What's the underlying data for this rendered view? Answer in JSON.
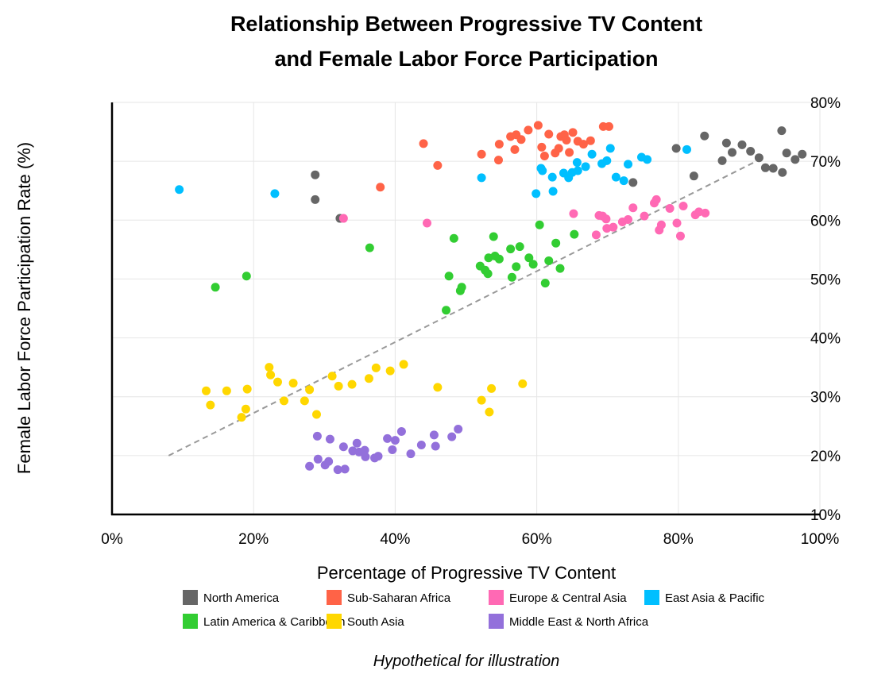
{
  "chart_data": {
    "type": "scatter",
    "title": [
      "Relationship Between Progressive TV Content",
      "and Female Labor Force Participation"
    ],
    "xlabel": "Percentage of Progressive TV Content",
    "ylabel": "Female Labor Force Participation Rate (%)",
    "xlim": [
      0,
      100
    ],
    "ylim": [
      10,
      80
    ],
    "x_ticks": [
      0,
      20,
      40,
      60,
      80,
      100
    ],
    "x_tick_labels": [
      "0%",
      "20%",
      "40%",
      "60%",
      "80%",
      "100%"
    ],
    "y_ticks": [
      10,
      20,
      30,
      40,
      50,
      60,
      70,
      80
    ],
    "y_tick_labels": [
      "10%",
      "20%",
      "30%",
      "40%",
      "50%",
      "60%",
      "70%",
      "80%"
    ],
    "y_axis_side": "right",
    "grid": true,
    "legend_position": "bottom",
    "note": "Hypothetical for illustration",
    "trend_line": {
      "x": [
        8,
        91
      ],
      "y": [
        20,
        70
      ],
      "color": "#999999",
      "style": "dashed"
    },
    "series": [
      {
        "name": "North America",
        "color": "#666666",
        "points": [
          [
            28.7,
            67.7
          ],
          [
            28.7,
            63.5
          ],
          [
            32.2,
            60.3
          ],
          [
            73.6,
            66.4
          ],
          [
            79.7,
            72.2
          ],
          [
            82.2,
            67.5
          ],
          [
            83.7,
            74.3
          ],
          [
            86.2,
            70.1
          ],
          [
            86.8,
            73.1
          ],
          [
            87.6,
            71.5
          ],
          [
            89.0,
            72.8
          ],
          [
            90.2,
            71.7
          ],
          [
            91.4,
            70.6
          ],
          [
            92.3,
            68.9
          ],
          [
            93.4,
            68.8
          ],
          [
            94.6,
            75.2
          ],
          [
            94.7,
            68.1
          ],
          [
            95.3,
            71.4
          ],
          [
            96.5,
            70.3
          ],
          [
            97.5,
            71.2
          ]
        ]
      },
      {
        "name": "Sub-Saharan Africa",
        "color": "#FF6347",
        "points": [
          [
            37.9,
            65.6
          ],
          [
            44.0,
            73.0
          ],
          [
            46.0,
            69.3
          ],
          [
            52.2,
            71.2
          ],
          [
            54.6,
            70.2
          ],
          [
            54.7,
            72.9
          ],
          [
            56.3,
            74.2
          ],
          [
            57.1,
            74.5
          ],
          [
            56.9,
            72.0
          ],
          [
            57.8,
            73.7
          ],
          [
            58.8,
            75.3
          ],
          [
            60.2,
            76.1
          ],
          [
            60.7,
            72.4
          ],
          [
            61.1,
            70.9
          ],
          [
            61.7,
            74.6
          ],
          [
            62.6,
            71.4
          ],
          [
            63.1,
            72.2
          ],
          [
            63.4,
            74.2
          ],
          [
            63.9,
            74.5
          ],
          [
            64.2,
            73.6
          ],
          [
            64.6,
            71.5
          ],
          [
            65.1,
            74.9
          ],
          [
            65.8,
            73.4
          ],
          [
            66.6,
            72.9
          ],
          [
            67.6,
            73.5
          ],
          [
            69.4,
            75.9
          ],
          [
            70.2,
            75.9
          ]
        ]
      },
      {
        "name": "Europe & Central Asia",
        "color": "#FF69B4",
        "points": [
          [
            32.7,
            60.3
          ],
          [
            44.5,
            59.5
          ],
          [
            65.2,
            61.1
          ],
          [
            68.4,
            57.5
          ],
          [
            68.8,
            60.8
          ],
          [
            69.3,
            60.7
          ],
          [
            69.8,
            60.2
          ],
          [
            69.9,
            58.6
          ],
          [
            70.8,
            58.8
          ],
          [
            72.1,
            59.7
          ],
          [
            72.9,
            60.1
          ],
          [
            73.6,
            62.1
          ],
          [
            75.2,
            60.7
          ],
          [
            76.6,
            62.9
          ],
          [
            76.9,
            63.5
          ],
          [
            77.3,
            58.3
          ],
          [
            77.6,
            59.2
          ],
          [
            78.8,
            62.0
          ],
          [
            79.8,
            59.5
          ],
          [
            80.3,
            57.3
          ],
          [
            80.7,
            62.4
          ],
          [
            82.4,
            60.9
          ],
          [
            82.9,
            61.4
          ],
          [
            83.8,
            61.2
          ]
        ]
      },
      {
        "name": "East Asia & Pacific",
        "color": "#00BFFF",
        "points": [
          [
            9.5,
            65.2
          ],
          [
            23.0,
            64.5
          ],
          [
            52.2,
            67.2
          ],
          [
            59.9,
            64.5
          ],
          [
            60.6,
            68.8
          ],
          [
            60.8,
            68.4
          ],
          [
            62.2,
            67.3
          ],
          [
            62.3,
            64.9
          ],
          [
            63.8,
            68.0
          ],
          [
            64.5,
            67.2
          ],
          [
            65.0,
            68.1
          ],
          [
            65.7,
            69.8
          ],
          [
            65.8,
            68.4
          ],
          [
            66.9,
            69.1
          ],
          [
            67.8,
            71.2
          ],
          [
            69.2,
            69.6
          ],
          [
            69.9,
            70.1
          ],
          [
            70.4,
            72.2
          ],
          [
            71.2,
            67.3
          ],
          [
            72.3,
            66.7
          ],
          [
            72.9,
            69.5
          ],
          [
            74.8,
            70.7
          ],
          [
            75.6,
            70.3
          ],
          [
            81.2,
            72.0
          ]
        ]
      },
      {
        "name": "Latin America & Caribbean",
        "color": "#32CD32",
        "points": [
          [
            14.6,
            48.6
          ],
          [
            19.0,
            50.5
          ],
          [
            36.4,
            55.3
          ],
          [
            47.2,
            44.7
          ],
          [
            47.6,
            50.5
          ],
          [
            48.3,
            56.9
          ],
          [
            49.2,
            48.0
          ],
          [
            49.4,
            48.6
          ],
          [
            52.0,
            52.2
          ],
          [
            52.7,
            51.5
          ],
          [
            53.1,
            50.9
          ],
          [
            53.2,
            53.6
          ],
          [
            53.9,
            57.2
          ],
          [
            54.1,
            53.9
          ],
          [
            54.7,
            53.4
          ],
          [
            56.3,
            55.1
          ],
          [
            56.5,
            50.3
          ],
          [
            57.1,
            52.1
          ],
          [
            57.6,
            55.5
          ],
          [
            58.9,
            53.6
          ],
          [
            59.5,
            52.5
          ],
          [
            60.4,
            59.2
          ],
          [
            61.2,
            49.3
          ],
          [
            61.7,
            53.1
          ],
          [
            62.7,
            56.1
          ],
          [
            63.3,
            51.8
          ],
          [
            65.3,
            57.6
          ]
        ]
      },
      {
        "name": "South Asia",
        "color": "#FFD700",
        "points": [
          [
            13.3,
            31.0
          ],
          [
            13.9,
            28.6
          ],
          [
            16.2,
            31.0
          ],
          [
            18.3,
            26.5
          ],
          [
            18.9,
            27.9
          ],
          [
            19.1,
            31.3
          ],
          [
            22.2,
            35.0
          ],
          [
            22.4,
            33.7
          ],
          [
            23.4,
            32.5
          ],
          [
            24.3,
            29.3
          ],
          [
            25.6,
            32.3
          ],
          [
            27.2,
            29.3
          ],
          [
            27.9,
            31.2
          ],
          [
            28.9,
            27.0
          ],
          [
            31.1,
            33.5
          ],
          [
            32.0,
            31.8
          ],
          [
            33.9,
            32.1
          ],
          [
            36.3,
            33.1
          ],
          [
            37.3,
            34.9
          ],
          [
            39.3,
            34.4
          ],
          [
            41.2,
            35.5
          ],
          [
            46.0,
            31.6
          ],
          [
            52.2,
            29.4
          ],
          [
            53.3,
            27.4
          ],
          [
            53.6,
            31.4
          ],
          [
            58.0,
            32.2
          ]
        ]
      },
      {
        "name": "Middle East & North Africa",
        "color": "#9370DB",
        "points": [
          [
            27.9,
            18.2
          ],
          [
            29.0,
            23.3
          ],
          [
            29.1,
            19.4
          ],
          [
            30.1,
            18.4
          ],
          [
            30.6,
            19.0
          ],
          [
            30.8,
            22.8
          ],
          [
            31.9,
            17.6
          ],
          [
            32.7,
            21.5
          ],
          [
            32.9,
            17.7
          ],
          [
            34.0,
            20.8
          ],
          [
            34.6,
            22.1
          ],
          [
            34.9,
            20.6
          ],
          [
            35.7,
            20.9
          ],
          [
            35.8,
            19.8
          ],
          [
            37.1,
            19.6
          ],
          [
            37.6,
            19.9
          ],
          [
            38.9,
            22.9
          ],
          [
            39.6,
            21.0
          ],
          [
            40.0,
            22.6
          ],
          [
            40.9,
            24.1
          ],
          [
            42.2,
            20.3
          ],
          [
            43.7,
            21.8
          ],
          [
            45.5,
            23.5
          ],
          [
            45.7,
            21.6
          ],
          [
            48.0,
            23.2
          ],
          [
            48.9,
            24.5
          ]
        ]
      }
    ]
  }
}
